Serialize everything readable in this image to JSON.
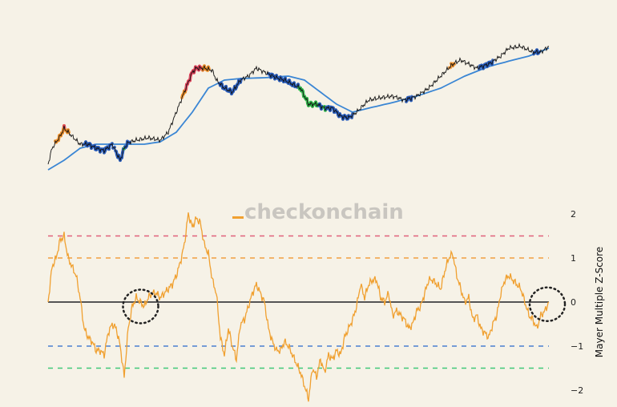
{
  "watermark": "checkonchain",
  "chart_data": [
    {
      "type": "line",
      "panel": "top",
      "series": [
        {
          "role": "price",
          "color": "#111111",
          "points": [
            [
              0,
              25
            ],
            [
              1,
              45
            ],
            [
              3,
              60
            ],
            [
              4,
              70
            ],
            [
              6,
              60
            ],
            [
              8,
              50
            ],
            [
              10,
              50
            ],
            [
              12,
              45
            ],
            [
              14,
              42
            ],
            [
              16,
              50
            ],
            [
              18,
              30
            ],
            [
              19,
              45
            ],
            [
              20,
              52
            ],
            [
              22,
              55
            ],
            [
              25,
              58
            ],
            [
              28,
              55
            ],
            [
              30,
              65
            ],
            [
              32,
              90
            ],
            [
              34,
              115
            ],
            [
              36,
              140
            ],
            [
              37,
              145
            ],
            [
              39,
              145
            ],
            [
              41,
              142
            ],
            [
              42,
              130
            ],
            [
              44,
              120
            ],
            [
              46,
              115
            ],
            [
              48,
              130
            ],
            [
              50,
              135
            ],
            [
              52,
              145
            ],
            [
              54,
              140
            ],
            [
              57,
              133
            ],
            [
              59,
              130
            ],
            [
              61,
              125
            ],
            [
              63,
              120
            ],
            [
              65,
              100
            ],
            [
              67,
              100
            ],
            [
              69,
              95
            ],
            [
              71,
              95
            ],
            [
              73,
              85
            ],
            [
              75,
              83
            ],
            [
              77,
              90
            ],
            [
              80,
              105
            ],
            [
              83,
              108
            ],
            [
              86,
              110
            ],
            [
              89,
              105
            ],
            [
              92,
              110
            ],
            [
              95,
              120
            ],
            [
              97,
              130
            ],
            [
              99,
              140
            ],
            [
              101,
              150
            ],
            [
              103,
              155
            ],
            [
              105,
              150
            ],
            [
              107,
              145
            ],
            [
              110,
              150
            ],
            [
              113,
              160
            ],
            [
              115,
              170
            ],
            [
              118,
              172
            ],
            [
              121,
              165
            ],
            [
              123,
              165
            ],
            [
              125,
              172
            ]
          ]
        },
        {
          "role": "moving-average",
          "color": "#3a86d4",
          "points": [
            [
              0,
              18
            ],
            [
              4,
              30
            ],
            [
              8,
              45
            ],
            [
              12,
              50
            ],
            [
              18,
              50
            ],
            [
              24,
              50
            ],
            [
              28,
              53
            ],
            [
              32,
              65
            ],
            [
              36,
              90
            ],
            [
              40,
              120
            ],
            [
              44,
              130
            ],
            [
              48,
              132
            ],
            [
              54,
              133
            ],
            [
              60,
              135
            ],
            [
              64,
              130
            ],
            [
              68,
              115
            ],
            [
              72,
              100
            ],
            [
              76,
              90
            ],
            [
              80,
              95
            ],
            [
              86,
              102
            ],
            [
              92,
              110
            ],
            [
              98,
              120
            ],
            [
              104,
              135
            ],
            [
              110,
              147
            ],
            [
              116,
              155
            ],
            [
              120,
              160
            ],
            [
              125,
              170
            ]
          ]
        }
      ],
      "band_colors": {
        "above_1.5": "#e0405a",
        "above_1": "#f0902a",
        "below_-0.5": "#2a5fc0",
        "below_-1.5": "#2fb84a"
      }
    },
    {
      "type": "line",
      "panel": "bottom",
      "ylabel": "Mayer Multiple Z-Score",
      "ylim": [
        -2.1,
        2.2
      ],
      "yticks": [
        "2",
        "1",
        "0",
        "−1",
        "−2"
      ],
      "ytick_values": [
        2,
        1,
        0,
        -1,
        -2
      ],
      "grid": false,
      "series": [
        {
          "color": "#f0a030",
          "values": [
            0,
            0.8,
            1.0,
            1.4,
            1.5,
            1.0,
            0.8,
            0.6,
            0.1,
            -0.6,
            -0.8,
            -0.9,
            -1.1,
            -1.1,
            -1.2,
            -0.7,
            -0.5,
            -0.6,
            -1.0,
            -1.7,
            -0.6,
            -0.1,
            0.1,
            0.0,
            -0.1,
            0.1,
            0.2,
            0.2,
            0.1,
            0.2,
            0.3,
            0.4,
            0.6,
            0.9,
            1.3,
            2.0,
            1.7,
            1.9,
            1.8,
            1.3,
            1.1,
            0.5,
            0.2,
            -0.8,
            -1.2,
            -0.6,
            -1.0,
            -1.3,
            -0.5,
            -0.4,
            -0.1,
            0.2,
            0.4,
            0.2,
            0.0,
            -0.6,
            -0.9,
            -1.1,
            -1.1,
            -0.9,
            -1.0,
            -1.2,
            -1.4,
            -1.6,
            -1.9,
            -2.2,
            -1.5,
            -1.7,
            -1.3,
            -1.6,
            -1.2,
            -1.3,
            -1.1,
            -1.2,
            -0.8,
            -0.6,
            -0.4,
            -0.1,
            0.4,
            0.1,
            0.4,
            0.5,
            0.5,
            0.1,
            0.0,
            0.2,
            -0.3,
            -0.2,
            -0.3,
            -0.4,
            -0.6,
            -0.5,
            -0.2,
            -0.1,
            0.2,
            0.5,
            0.5,
            0.4,
            0.3,
            0.7,
            1.0,
            1.1,
            0.6,
            0.3,
            0.0,
            0.1,
            -0.4,
            -0.3,
            -0.6,
            -0.7,
            -0.8,
            -0.5,
            -0.3,
            0.2,
            0.5,
            0.6,
            0.5,
            0.4,
            0.3,
            0.0,
            -0.3,
            -0.4,
            -0.6,
            -0.3,
            -0.2,
            0.0
          ]
        }
      ],
      "reference_lines": [
        {
          "y": 1.5,
          "color": "#e0607a",
          "style": "dashed"
        },
        {
          "y": 1,
          "color": "#f0a040",
          "style": "dashed"
        },
        {
          "y": 0,
          "color": "#555555",
          "style": "solid"
        },
        {
          "y": -1,
          "color": "#4a7fd0",
          "style": "dashed"
        },
        {
          "y": -1.5,
          "color": "#40c878",
          "style": "dashed"
        }
      ],
      "annotations": [
        {
          "type": "dotted-circle",
          "x": 23.5,
          "y": -0.1
        },
        {
          "type": "dotted-circle",
          "x": 125,
          "y": -0.05
        }
      ]
    }
  ]
}
